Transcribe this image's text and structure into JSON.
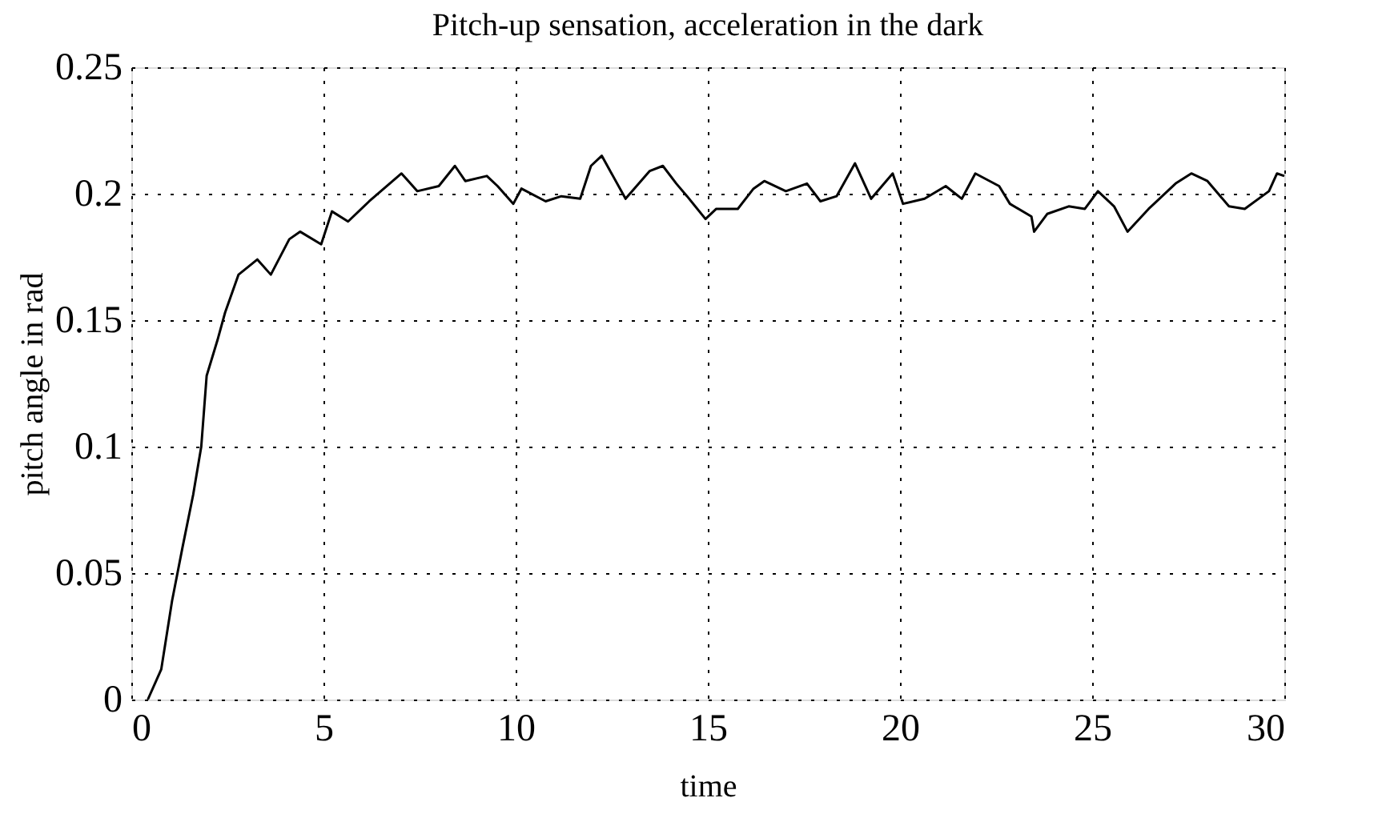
{
  "chart_data": {
    "type": "line",
    "title": "Pitch-up sensation, acceleration in the dark",
    "xlabel": "time",
    "ylabel": "pitch angle in rad",
    "x": [
      0.43,
      0.78,
      1.06,
      1.33,
      1.61,
      1.82,
      1.96,
      2.24,
      2.44,
      2.79,
      3.28,
      3.63,
      4.11,
      4.39,
      4.94,
      5.22,
      5.64,
      6.19,
      7.03,
      7.44,
      8.0,
      8.42,
      8.69,
      9.25,
      9.53,
      9.94,
      10.15,
      10.78,
      11.19,
      11.68,
      11.96,
      12.24,
      12.86,
      13.49,
      13.83,
      14.18,
      14.46,
      14.94,
      15.22,
      15.78,
      16.19,
      16.47,
      17.03,
      17.58,
      17.93,
      18.35,
      18.83,
      19.25,
      19.81,
      20.08,
      20.64,
      21.19,
      21.61,
      21.96,
      22.58,
      22.86,
      23.42,
      23.49,
      23.83,
      24.39,
      24.81,
      25.15,
      25.57,
      25.92,
      26.47,
      27.17,
      27.58,
      28.0,
      28.56,
      28.97,
      29.6,
      29.81,
      30.0
    ],
    "series": [
      {
        "color": "#000000",
        "values": [
          0.0,
          0.012,
          0.039,
          0.06,
          0.081,
          0.1,
          0.128,
          0.142,
          0.153,
          0.168,
          0.174,
          0.168,
          0.182,
          0.185,
          0.18,
          0.193,
          0.189,
          0.197,
          0.208,
          0.201,
          0.203,
          0.211,
          0.205,
          0.207,
          0.203,
          0.196,
          0.202,
          0.197,
          0.199,
          0.198,
          0.211,
          0.215,
          0.198,
          0.209,
          0.211,
          0.204,
          0.199,
          0.19,
          0.194,
          0.194,
          0.202,
          0.205,
          0.201,
          0.204,
          0.197,
          0.199,
          0.212,
          0.198,
          0.208,
          0.196,
          0.198,
          0.203,
          0.198,
          0.208,
          0.203,
          0.196,
          0.191,
          0.185,
          0.192,
          0.195,
          0.194,
          0.201,
          0.195,
          0.185,
          0.194,
          0.204,
          0.208,
          0.205,
          0.195,
          0.194,
          0.201,
          0.208,
          0.207
        ]
      }
    ],
    "xlim": [
      0,
      30
    ],
    "ylim": [
      0,
      0.25
    ],
    "xticks": [
      0,
      5,
      10,
      15,
      20,
      25,
      30
    ],
    "yticks": [
      0,
      0.05,
      0.1,
      0.15,
      0.2,
      0.25
    ],
    "grid": true,
    "legend": false,
    "marker": "none",
    "line_style": "solid"
  }
}
